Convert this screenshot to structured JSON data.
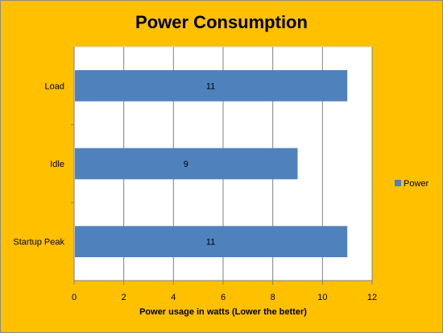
{
  "chart_data": {
    "type": "bar",
    "orientation": "horizontal",
    "title": "Power Consumption",
    "categories": [
      "Load",
      "Idle",
      "Startup Peak"
    ],
    "series": [
      {
        "name": "Power",
        "values": [
          11,
          9,
          11
        ],
        "color": "#4f81bd"
      }
    ],
    "xlabel": "Power usage  in watts (Lower the better)",
    "ylabel": "",
    "xlim": [
      0,
      12
    ],
    "xticks": [
      0,
      2,
      4,
      6,
      8,
      10,
      12
    ],
    "grid": true,
    "legend": "right",
    "background_color": "#ffc000",
    "plot_background": "#ffffff",
    "gridline_color": "#808080"
  }
}
